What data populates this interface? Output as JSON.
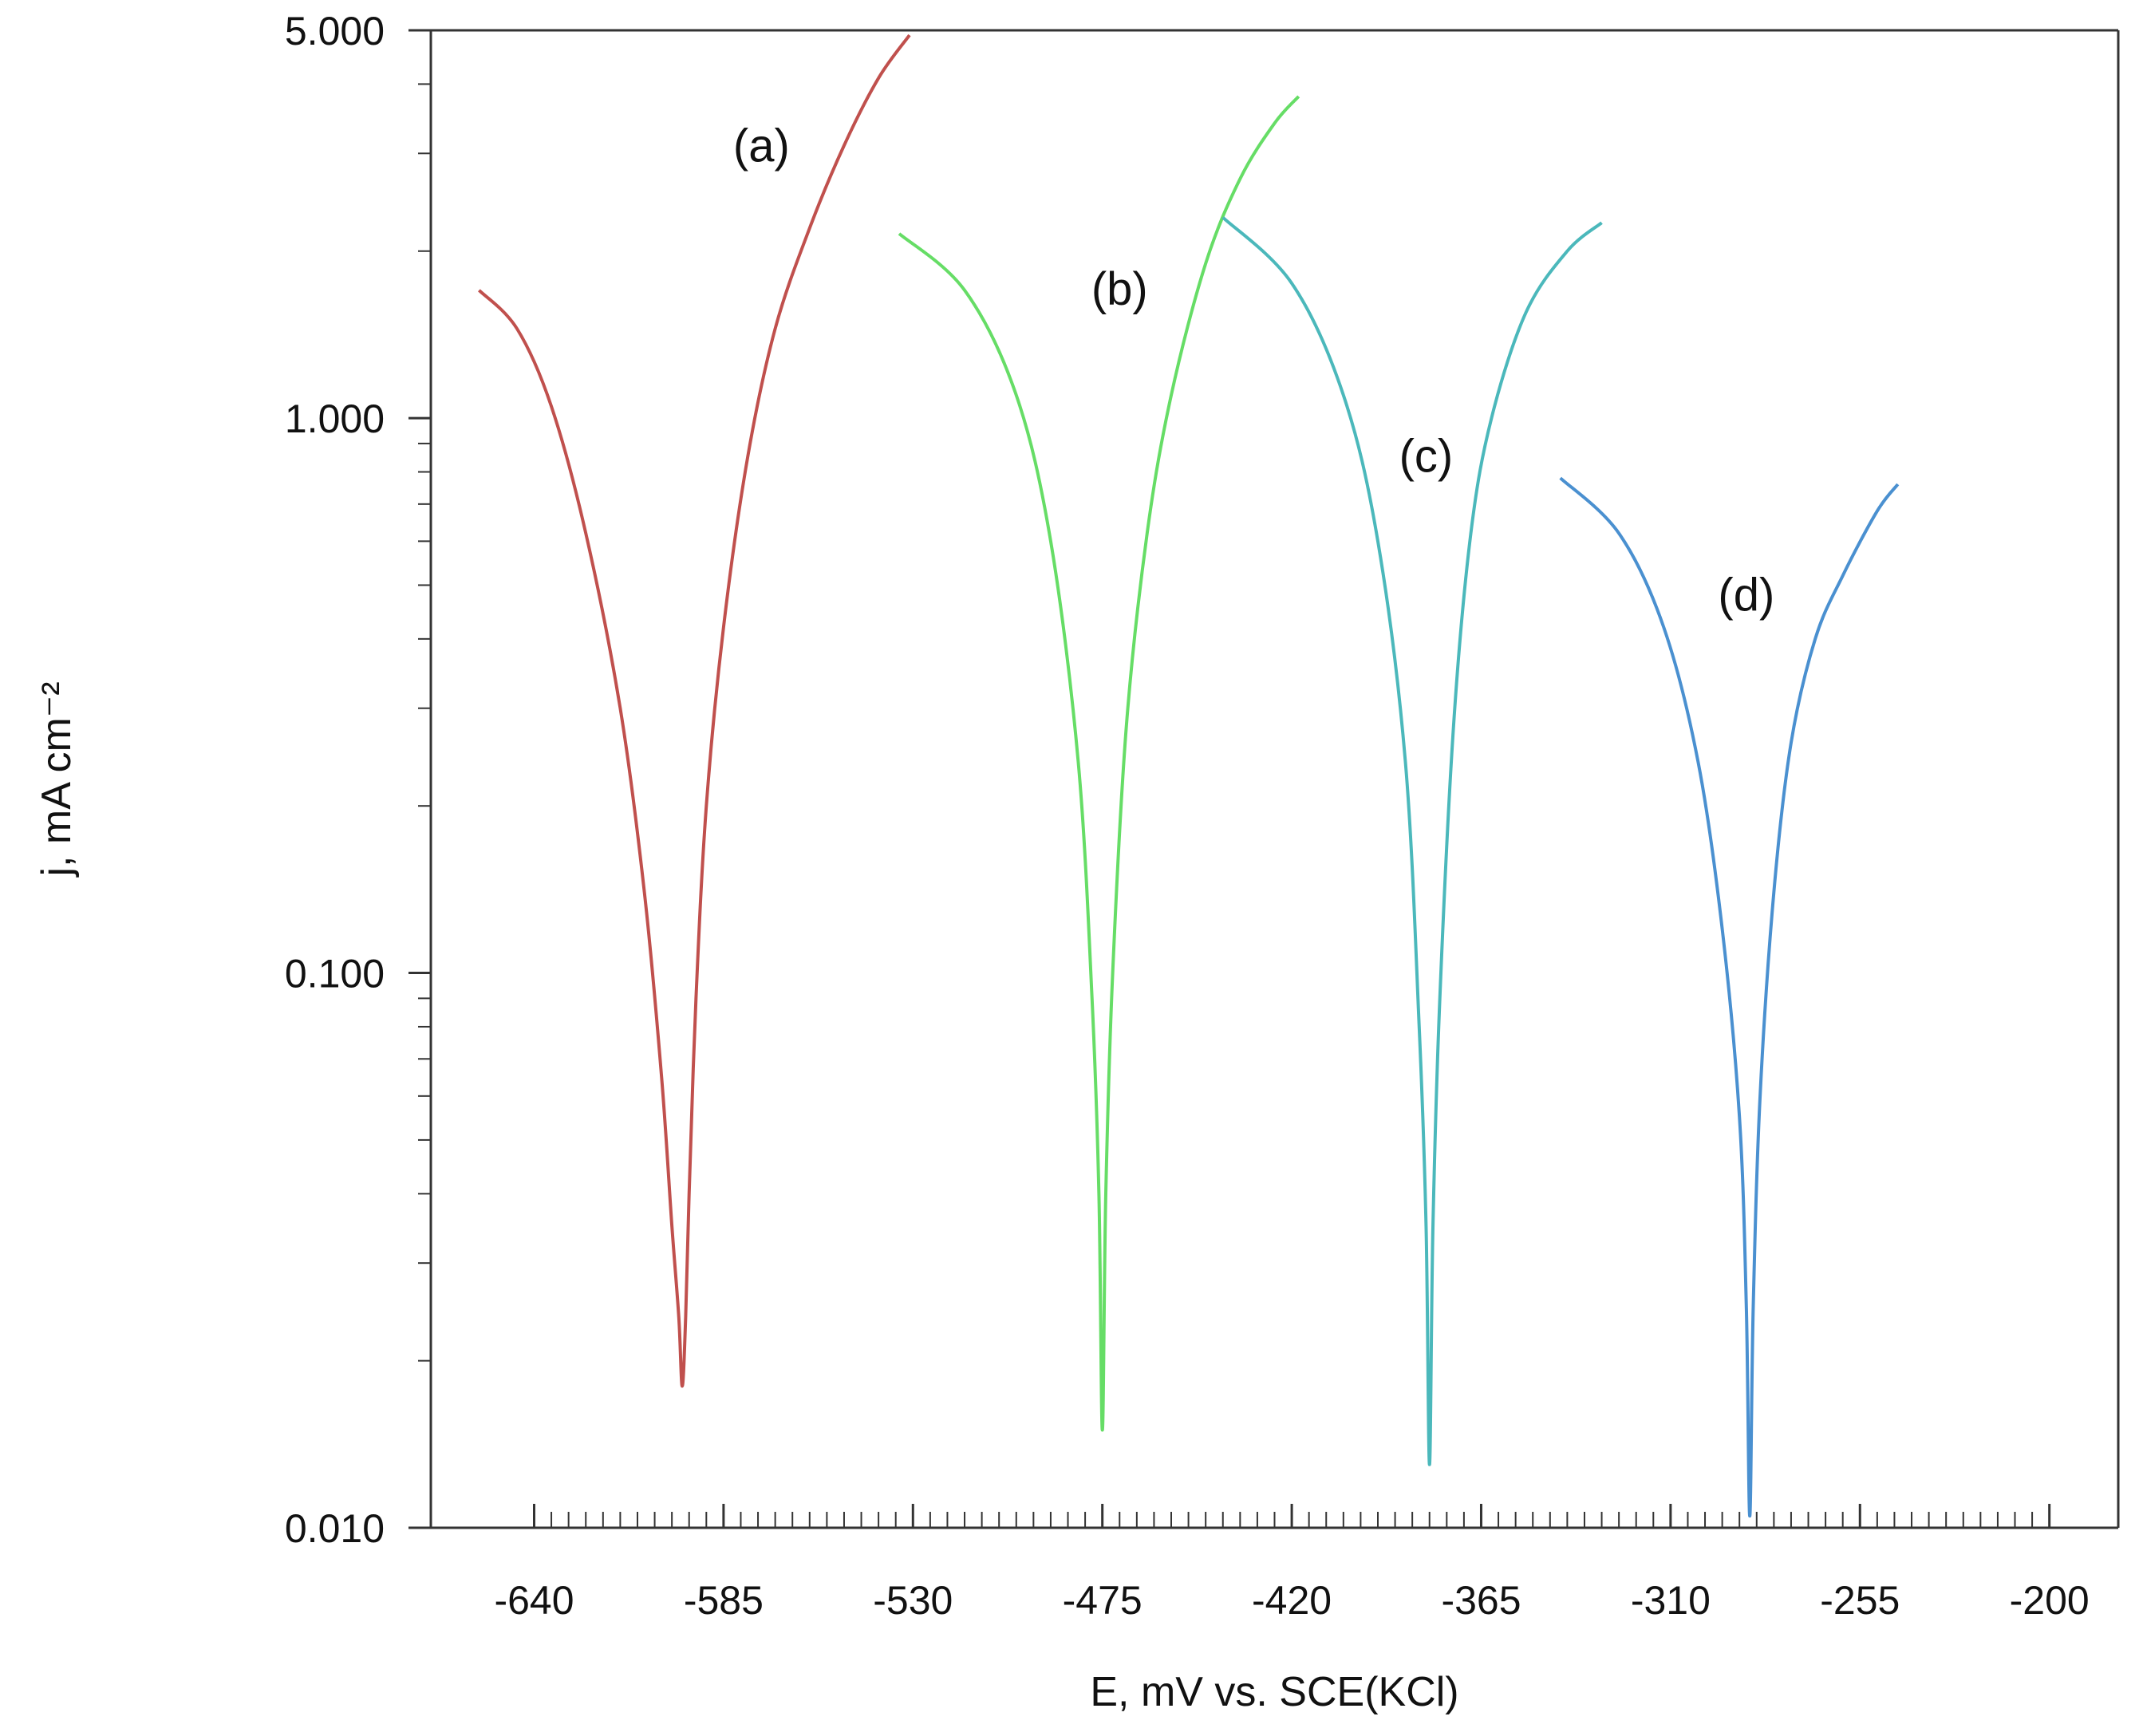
{
  "chart_data": {
    "type": "line",
    "title": "",
    "xlabel": "E, mV vs. SCE(KCl)",
    "ylabel": "j, mA cm⁻²",
    "xlim": [
      -670,
      -180
    ],
    "ylim": [
      0.01,
      5
    ],
    "yscale": "log",
    "xticks": [
      -640,
      -585,
      -530,
      -475,
      -420,
      -365,
      -310,
      -255,
      -200
    ],
    "xtick_labels": [
      "-640",
      "-585",
      "-530",
      "-475",
      "-420",
      "-365",
      "-310",
      "-255",
      "-200"
    ],
    "yticks": [
      0.01,
      0.1,
      1,
      5
    ],
    "ytick_labels": [
      "0.010",
      "0.100",
      "1.000",
      "5.000"
    ],
    "grid": false,
    "legend": "none",
    "series": [
      {
        "name": "(a)",
        "color": "#c0504d",
        "x": [
          -656,
          -645,
          -635,
          -625,
          -615,
          -608,
          -603,
          -600,
          -598,
          -597,
          -596,
          -595,
          -593,
          -590,
          -585,
          -578,
          -570,
          -560,
          -550,
          -540,
          -531
        ],
        "y": [
          1.7,
          1.45,
          1.05,
          0.62,
          0.3,
          0.14,
          0.065,
          0.035,
          0.024,
          0.018,
          0.024,
          0.04,
          0.09,
          0.2,
          0.42,
          0.85,
          1.45,
          2.2,
          3.1,
          4.1,
          4.9
        ]
      },
      {
        "name": "(b)",
        "color": "#66dd66",
        "x": [
          -534,
          -515,
          -500,
          -490,
          -482,
          -478,
          -476,
          -475,
          -474,
          -472,
          -468,
          -462,
          -455,
          -445,
          -435,
          -425,
          -418
        ],
        "y": [
          2.15,
          1.7,
          1.1,
          0.6,
          0.24,
          0.09,
          0.04,
          0.015,
          0.04,
          0.1,
          0.28,
          0.62,
          1.1,
          1.9,
          2.7,
          3.4,
          3.8
        ]
      },
      {
        "name": "(c)",
        "color": "#4bb8bb",
        "x": [
          -440,
          -420,
          -405,
          -395,
          -387,
          -383,
          -381,
          -380,
          -379,
          -377,
          -373,
          -368,
          -362,
          -352,
          -340,
          -330
        ],
        "y": [
          2.3,
          1.75,
          1.1,
          0.6,
          0.24,
          0.08,
          0.035,
          0.013,
          0.035,
          0.09,
          0.28,
          0.62,
          1.0,
          1.55,
          2.0,
          2.25
        ]
      },
      {
        "name": "(d)",
        "color": "#4a90d0",
        "x": [
          -342,
          -325,
          -312,
          -302,
          -295,
          -290,
          -288,
          -287,
          -286,
          -284,
          -280,
          -275,
          -268,
          -260,
          -250,
          -244
        ],
        "y": [
          0.78,
          0.62,
          0.42,
          0.24,
          0.12,
          0.055,
          0.025,
          0.0105,
          0.025,
          0.06,
          0.14,
          0.26,
          0.4,
          0.52,
          0.68,
          0.76
        ]
      }
    ],
    "annotations": [
      {
        "text": "(a)",
        "x": -574,
        "y": 2.9
      },
      {
        "text": "(b)",
        "x": -470,
        "y": 1.6
      },
      {
        "text": "(c)",
        "x": -381,
        "y": 0.8
      },
      {
        "text": "(d)",
        "x": -288,
        "y": 0.45
      }
    ]
  }
}
